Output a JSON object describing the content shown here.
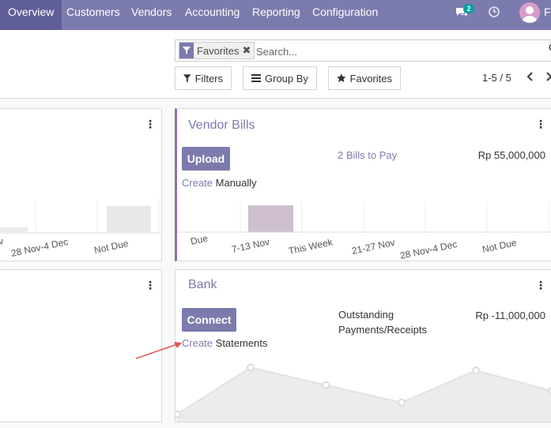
{
  "nav": {
    "items": [
      "Overview",
      "Customers",
      "Vendors",
      "Accounting",
      "Reporting",
      "Configuration"
    ],
    "active": "Overview",
    "chat_badge": "2",
    "user_initial": "F"
  },
  "search": {
    "facet_label": "Favorites",
    "facet_remove": "✖",
    "placeholder": "Search..."
  },
  "toolbar": {
    "filters_label": "Filters",
    "groupby_label": "Group By",
    "favorites_label": "Favorites",
    "pager": "1-5 / 5"
  },
  "left_top_card": {
    "chart_data": {
      "type": "bar",
      "categories": [
        "v",
        "28 Nov-4 Dec",
        "Not Due"
      ],
      "tick_labels": [
        "v",
        "28 Nov-4 Dec",
        "Not Due"
      ]
    }
  },
  "vendor_bills": {
    "title": "Vendor Bills",
    "button_label": "Upload",
    "create_link": "Create",
    "create_suffix": " Manually",
    "bills_link": "2 Bills to Pay",
    "amount": "Rp 55,000,000",
    "chart_data": {
      "type": "bar",
      "categories": [
        "Due",
        "7-13 Nov",
        "This Week",
        "21-27 Nov",
        "28 Nov-4 Dec",
        "Not Due"
      ],
      "highlighted": "7-13 Nov",
      "bar_color": "#cdbfcc"
    }
  },
  "bank": {
    "title": "Bank",
    "button_label": "Connect",
    "create_link": "Create",
    "create_suffix": " Statements",
    "outstanding_label_1": "Outstanding",
    "outstanding_label_2": "Payments/Receipts",
    "amount": "Rp -11,000,000",
    "chart_data": {
      "type": "area",
      "points_relative": [
        0.1,
        0.9,
        0.6,
        0.3,
        0.85,
        0.5
      ]
    }
  },
  "colors": {
    "brand": "#7c7bad",
    "nav_active": "#5f5e97",
    "badge": "#00a09d",
    "arrow": "#e05a5a"
  }
}
